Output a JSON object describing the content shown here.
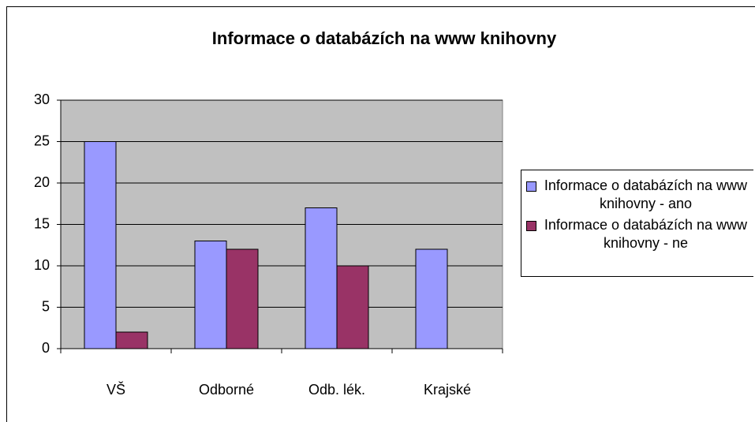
{
  "chart_data": {
    "type": "bar",
    "title": "Informace o databázích na www knihovny",
    "categories": [
      "VŠ",
      "Odborné",
      "Odb. lék.",
      "Krajské"
    ],
    "series": [
      {
        "name": "Informace o databázích na www knihovny - ano",
        "color": "#9999ff",
        "values": [
          25,
          13,
          17,
          12
        ]
      },
      {
        "name": "Informace o databázích na www knihovny - ne",
        "color": "#993366",
        "values": [
          2,
          12,
          10,
          0
        ]
      }
    ],
    "ylim": [
      0,
      30
    ],
    "yticks": [
      0,
      5,
      10,
      15,
      20,
      25,
      30
    ],
    "grid": true,
    "legend": "right",
    "plot_background": "#c0c0c0"
  }
}
